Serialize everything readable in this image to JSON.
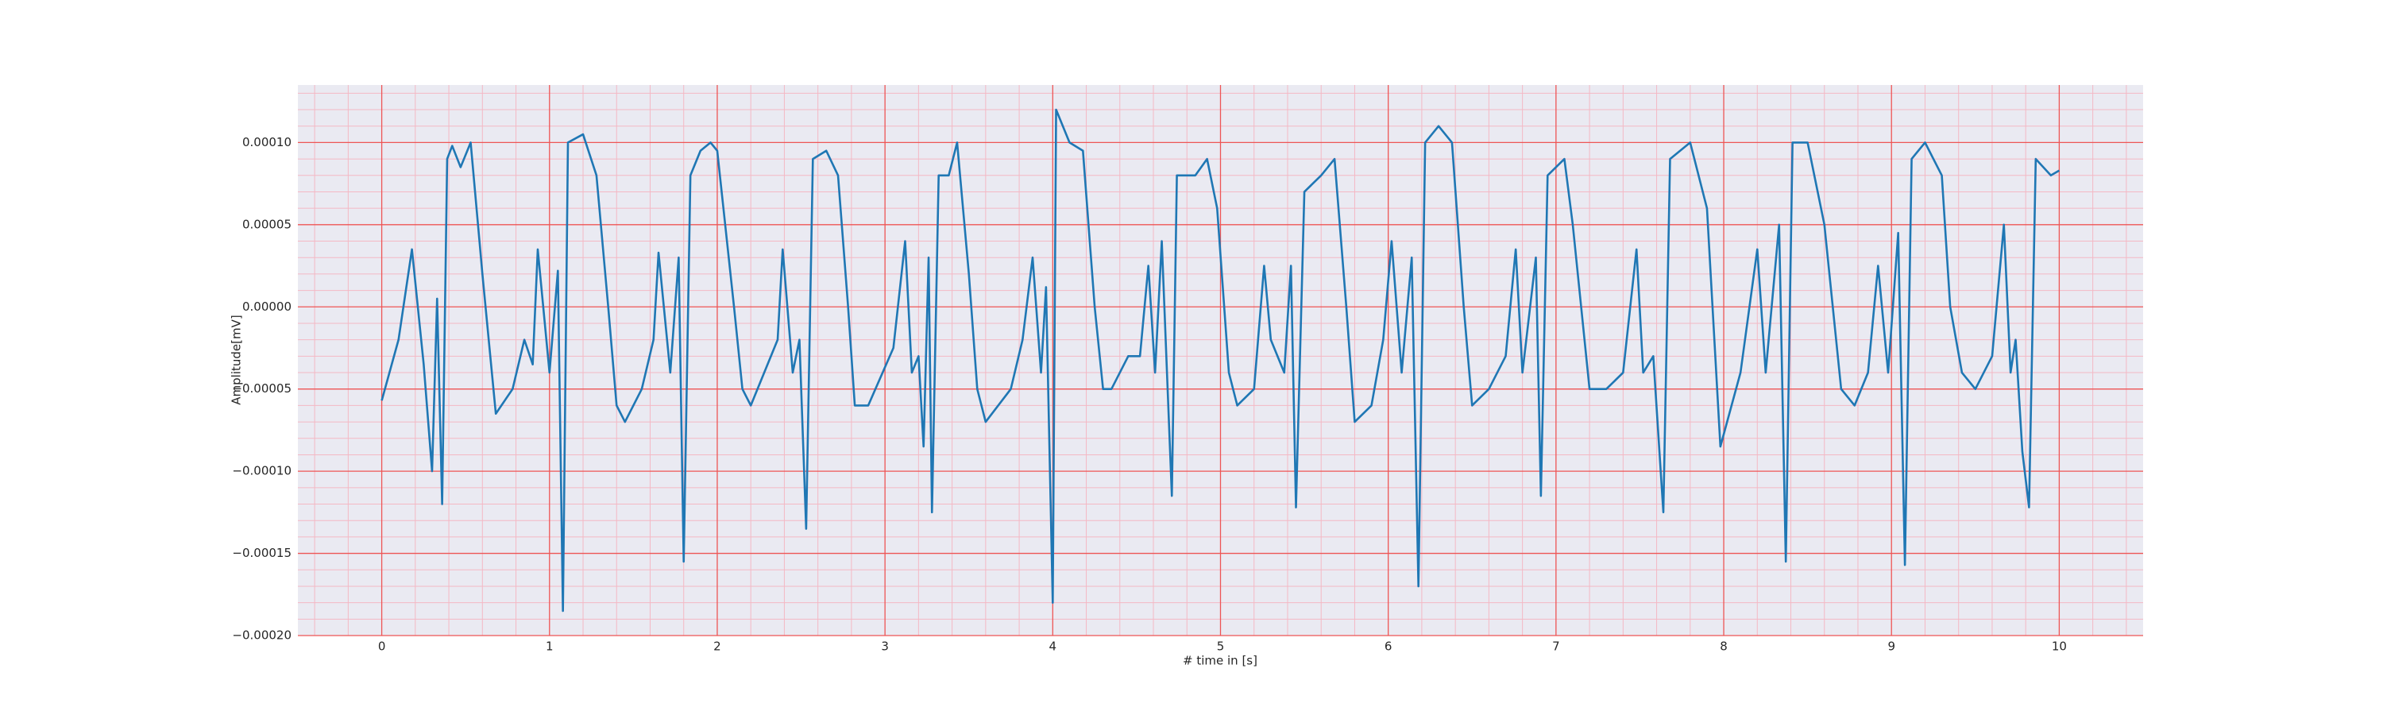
{
  "chart_data": {
    "type": "line",
    "xlabel": "# time in [s]",
    "ylabel": "Amplitude[mV]",
    "x": [
      0,
      0.1,
      0.18,
      0.25,
      0.3,
      0.33,
      0.36,
      0.39,
      0.42,
      0.47,
      0.53,
      0.6,
      0.68,
      0.78,
      0.85,
      0.9,
      0.93,
      1.0,
      1.05,
      1.08,
      1.11,
      1.2,
      1.28,
      1.35,
      1.4,
      1.45,
      1.55,
      1.62,
      1.65,
      1.72,
      1.77,
      1.8,
      1.84,
      1.9,
      1.96,
      2.0,
      2.1,
      2.15,
      2.2,
      2.28,
      2.36,
      2.39,
      2.45,
      2.49,
      2.53,
      2.57,
      2.65,
      2.72,
      2.78,
      2.82,
      2.9,
      3.05,
      3.12,
      3.16,
      3.2,
      3.23,
      3.26,
      3.28,
      3.32,
      3.38,
      3.43,
      3.5,
      3.55,
      3.6,
      3.75,
      3.82,
      3.88,
      3.93,
      3.96,
      4.0,
      4.02,
      4.1,
      4.18,
      4.25,
      4.3,
      4.35,
      4.45,
      4.52,
      4.57,
      4.61,
      4.65,
      4.71,
      4.74,
      4.85,
      4.92,
      4.98,
      5.05,
      5.1,
      5.2,
      5.26,
      5.3,
      5.38,
      5.42,
      5.45,
      5.5,
      5.6,
      5.68,
      5.75,
      5.8,
      5.9,
      5.97,
      6.02,
      6.08,
      6.14,
      6.18,
      6.22,
      6.3,
      6.38,
      6.45,
      6.5,
      6.6,
      6.7,
      6.76,
      6.8,
      6.88,
      6.91,
      6.95,
      7.05,
      7.1,
      7.2,
      7.3,
      7.4,
      7.48,
      7.52,
      7.58,
      7.64,
      7.68,
      7.8,
      7.9,
      7.98,
      8.1,
      8.2,
      8.25,
      8.33,
      8.37,
      8.41,
      8.5,
      8.6,
      8.7,
      8.78,
      8.86,
      8.92,
      8.98,
      9.04,
      9.08,
      9.12,
      9.2,
      9.3,
      9.35,
      9.42,
      9.5,
      9.6,
      9.67,
      9.71,
      9.74,
      9.78,
      9.82,
      9.86,
      9.95,
      10.0
    ],
    "values": [
      -5.7e-05,
      -2e-05,
      3.5e-05,
      -3.5e-05,
      -0.0001,
      5e-06,
      -0.00012,
      9e-05,
      9.8e-05,
      8.5e-05,
      0.0001,
      2e-05,
      -6.5e-05,
      -5e-05,
      -2e-05,
      -3.5e-05,
      3.5e-05,
      -4e-05,
      2.2e-05,
      -0.000185,
      0.0001,
      0.000105,
      8e-05,
      0,
      -6e-05,
      -7e-05,
      -5e-05,
      -2e-05,
      3.3e-05,
      -4e-05,
      3e-05,
      -0.000155,
      8e-05,
      9.5e-05,
      0.0001,
      9.5e-05,
      0,
      -5e-05,
      -6e-05,
      -4e-05,
      -2e-05,
      3.5e-05,
      -4e-05,
      -2e-05,
      -0.000135,
      9e-05,
      9.5e-05,
      8e-05,
      0,
      -6e-05,
      -6e-05,
      -2.5e-05,
      4e-05,
      -4e-05,
      -3e-05,
      -8.5e-05,
      3e-05,
      -0.000125,
      8e-05,
      8e-05,
      0.0001,
      2e-05,
      -5e-05,
      -7e-05,
      -5e-05,
      -2e-05,
      3e-05,
      -4e-05,
      1.2e-05,
      -0.00018,
      0.00012,
      0.0001,
      9.5e-05,
      0,
      -5e-05,
      -5e-05,
      -3e-05,
      -3e-05,
      2.5e-05,
      -4e-05,
      4e-05,
      -0.000115,
      8e-05,
      8e-05,
      9e-05,
      6e-05,
      -4e-05,
      -6e-05,
      -5e-05,
      2.5e-05,
      -2e-05,
      -4e-05,
      2.5e-05,
      -0.000122,
      7e-05,
      8e-05,
      9e-05,
      0,
      -7e-05,
      -6e-05,
      -2e-05,
      4e-05,
      -4e-05,
      3e-05,
      -0.00017,
      0.0001,
      0.00011,
      0.0001,
      0,
      -6e-05,
      -5e-05,
      -3e-05,
      3.5e-05,
      -4e-05,
      3e-05,
      -0.000115,
      8e-05,
      9e-05,
      5e-05,
      -5e-05,
      -5e-05,
      -4e-05,
      3.5e-05,
      -4e-05,
      -3e-05,
      -0.000125,
      9e-05,
      0.0001,
      6e-05,
      -8.5e-05,
      -4e-05,
      3.5e-05,
      -4e-05,
      5e-05,
      -0.000155,
      0.0001,
      0.0001,
      5e-05,
      -5e-05,
      -6e-05,
      -4e-05,
      2.5e-05,
      -4e-05,
      4.5e-05,
      -0.000157,
      9e-05,
      0.0001,
      8e-05,
      0,
      -4e-05,
      -5e-05,
      -3e-05,
      5e-05,
      -4e-05,
      -2e-05,
      -8.8e-05,
      -0.000122,
      9e-05,
      8e-05,
      8.3e-05
    ],
    "color": "#1f77b4",
    "xlim": [
      -0.5,
      10.5
    ],
    "xticks": [
      0,
      1,
      2,
      3,
      4,
      5,
      6,
      7,
      8,
      9,
      10
    ],
    "ylim": [
      -0.0002,
      0.000135
    ],
    "yticks": [
      {
        "value": -0.0002,
        "label": "−0.00020"
      },
      {
        "value": -0.00015,
        "label": "−0.00015"
      },
      {
        "value": -0.0001,
        "label": "−0.00010"
      },
      {
        "value": -5e-05,
        "label": "−0.00005"
      },
      {
        "value": 0,
        "label": "0.00000"
      },
      {
        "value": 5e-05,
        "label": "0.00005"
      },
      {
        "value": 0.0001,
        "label": "0.00010"
      }
    ],
    "grid": true,
    "minor_grid": true,
    "grid_color": "#ee5555",
    "minor_grid_color": "#f4b8c4",
    "background": "#eaeaf2"
  }
}
